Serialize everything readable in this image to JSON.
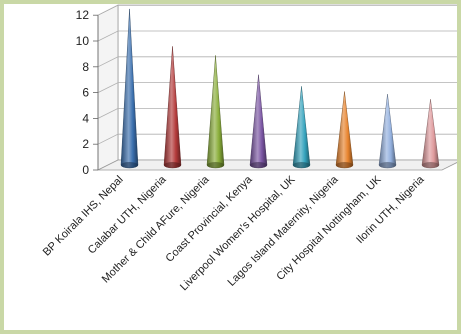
{
  "chart_data": {
    "type": "bar",
    "bar_shape": "cone",
    "title": "",
    "xlabel": "",
    "ylabel": "",
    "ylim": [
      0,
      12
    ],
    "y_ticks": [
      0,
      2,
      4,
      6,
      8,
      10,
      12
    ],
    "grid": true,
    "legend": "none",
    "categories": [
      "BP Koirala IHS, Nepal",
      "Calabar UTH, Nigeria",
      "Mother & Child AFure, Nigeria",
      "Coast Provincial, Kenya",
      "Liverpool Women's Hospital, UK",
      "Lagos Island Maternity, Nigeria",
      "City Hospital Nottingham, UK",
      "Ilorin UTH, Nigeria"
    ],
    "values": [
      12.1,
      9.2,
      8.5,
      7.0,
      6.1,
      5.7,
      5.5,
      5.1
    ],
    "colors": [
      "#3a6fae",
      "#b33a3a",
      "#8aae3a",
      "#7a55a3",
      "#34a3bd",
      "#e8842e",
      "#93b0de",
      "#df9a9c"
    ]
  },
  "frame": {
    "border_color": "#c9d8a6"
  }
}
